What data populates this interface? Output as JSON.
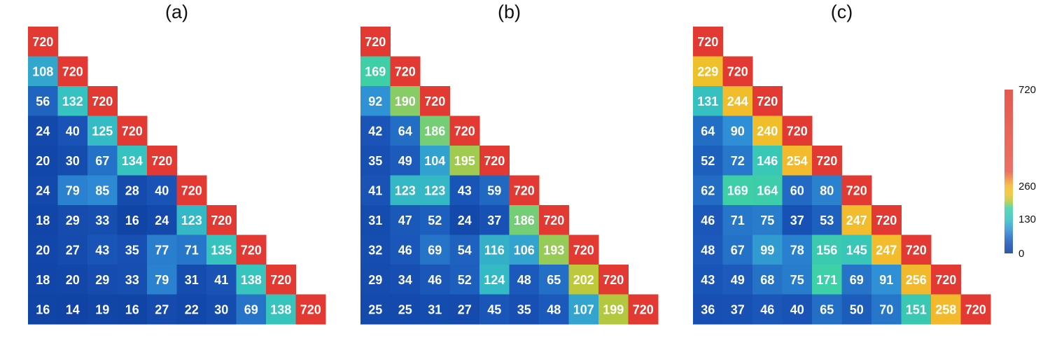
{
  "chart_data": [
    {
      "type": "heatmap",
      "title": "(a)",
      "rows": [
        [
          720
        ],
        [
          108,
          720
        ],
        [
          56,
          132,
          720
        ],
        [
          24,
          40,
          125,
          720
        ],
        [
          20,
          30,
          67,
          134,
          720
        ],
        [
          24,
          79,
          85,
          28,
          40,
          720
        ],
        [
          18,
          29,
          33,
          16,
          24,
          123,
          720
        ],
        [
          20,
          27,
          43,
          35,
          77,
          71,
          135,
          720
        ],
        [
          18,
          20,
          29,
          33,
          79,
          31,
          41,
          138,
          720
        ],
        [
          16,
          14,
          19,
          16,
          27,
          22,
          30,
          69,
          138,
          720
        ]
      ]
    },
    {
      "type": "heatmap",
      "title": "(b)",
      "rows": [
        [
          720
        ],
        [
          169,
          720
        ],
        [
          92,
          190,
          720
        ],
        [
          42,
          64,
          186,
          720
        ],
        [
          35,
          49,
          104,
          195,
          720
        ],
        [
          41,
          123,
          123,
          43,
          59,
          720
        ],
        [
          31,
          47,
          52,
          24,
          37,
          186,
          720
        ],
        [
          32,
          46,
          69,
          54,
          116,
          106,
          193,
          720
        ],
        [
          29,
          34,
          46,
          52,
          124,
          48,
          65,
          202,
          720
        ],
        [
          25,
          25,
          31,
          27,
          45,
          35,
          48,
          107,
          199,
          720
        ]
      ]
    },
    {
      "type": "heatmap",
      "title": "(c)",
      "rows": [
        [
          720
        ],
        [
          229,
          720
        ],
        [
          131,
          244,
          720
        ],
        [
          64,
          90,
          240,
          720
        ],
        [
          52,
          72,
          146,
          254,
          720
        ],
        [
          62,
          169,
          164,
          60,
          80,
          720
        ],
        [
          46,
          71,
          75,
          37,
          53,
          247,
          720
        ],
        [
          48,
          67,
          99,
          78,
          156,
          145,
          247,
          720
        ],
        [
          43,
          49,
          68,
          75,
          171,
          69,
          91,
          256,
          720
        ],
        [
          36,
          37,
          46,
          40,
          65,
          50,
          70,
          151,
          258,
          720
        ]
      ]
    }
  ],
  "colorbar": {
    "ticks": [
      "720",
      "260",
      "130",
      "0"
    ],
    "tick_values": [
      720,
      260,
      130,
      0
    ],
    "stops": [
      {
        "value": 0,
        "color": "#0b3a9b"
      },
      {
        "value": 45,
        "color": "#1a56b8"
      },
      {
        "value": 90,
        "color": "#2f8fd6"
      },
      {
        "value": 130,
        "color": "#35c1c1"
      },
      {
        "value": 175,
        "color": "#3fd1a3"
      },
      {
        "value": 200,
        "color": "#b9c83b"
      },
      {
        "value": 230,
        "color": "#f0c12b"
      },
      {
        "value": 260,
        "color": "#f3b82c"
      },
      {
        "value": 330,
        "color": "#e8584a"
      },
      {
        "value": 720,
        "color": "#e23a32"
      }
    ]
  }
}
